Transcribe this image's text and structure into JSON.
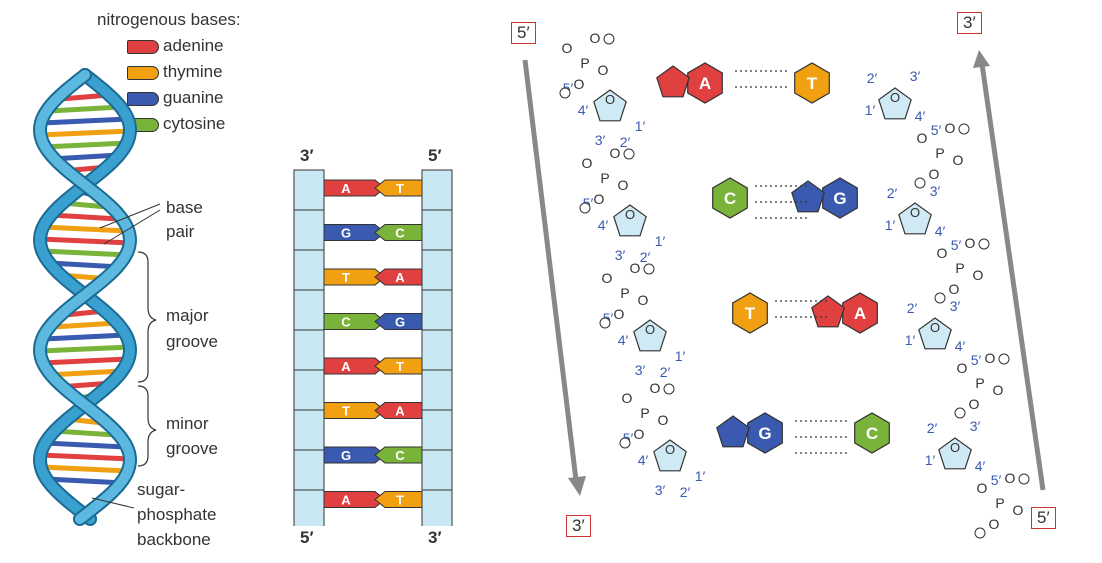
{
  "legend": {
    "title": "nitrogenous bases:",
    "items": [
      {
        "label": "adenine",
        "color": "#e04040"
      },
      {
        "label": "thymine",
        "color": "#f0a010"
      },
      {
        "label": "guanine",
        "color": "#3a5ab0"
      },
      {
        "label": "cytosine",
        "color": "#7ab33a"
      }
    ]
  },
  "helix_labels": {
    "base_pair": [
      "base",
      "pair"
    ],
    "major_groove": [
      "major",
      "groove"
    ],
    "minor_groove": [
      "minor",
      "groove"
    ],
    "backbone": [
      "sugar-",
      "phosphate",
      "backbone"
    ]
  },
  "ladder": {
    "left_top": "3′",
    "right_top": "5′",
    "left_bottom": "5′",
    "right_bottom": "3′",
    "pairs": [
      {
        "left": "A",
        "right": "T"
      },
      {
        "left": "G",
        "right": "C"
      },
      {
        "left": "T",
        "right": "A"
      },
      {
        "left": "C",
        "right": "G"
      },
      {
        "left": "A",
        "right": "T"
      },
      {
        "left": "T",
        "right": "A"
      },
      {
        "left": "G",
        "right": "C"
      },
      {
        "left": "A",
        "right": "T"
      }
    ]
  },
  "structure": {
    "left_top": "5′",
    "left_bottom": "3′",
    "right_top": "3′",
    "right_bottom": "5′",
    "rows": [
      {
        "left": "A",
        "right": "T"
      },
      {
        "left": "C",
        "right": "G"
      },
      {
        "left": "T",
        "right": "A"
      },
      {
        "left": "G",
        "right": "C"
      }
    ]
  },
  "colors": {
    "adenine": "#e04040",
    "thymine": "#f0a010",
    "guanine": "#3a5ab0",
    "cytosine": "#7ab33a",
    "sugar": "#cfeaf4",
    "helix": "#3aa0d0",
    "backbone_box": "#c8e8f3",
    "number_blue": "#3a5ab0"
  }
}
